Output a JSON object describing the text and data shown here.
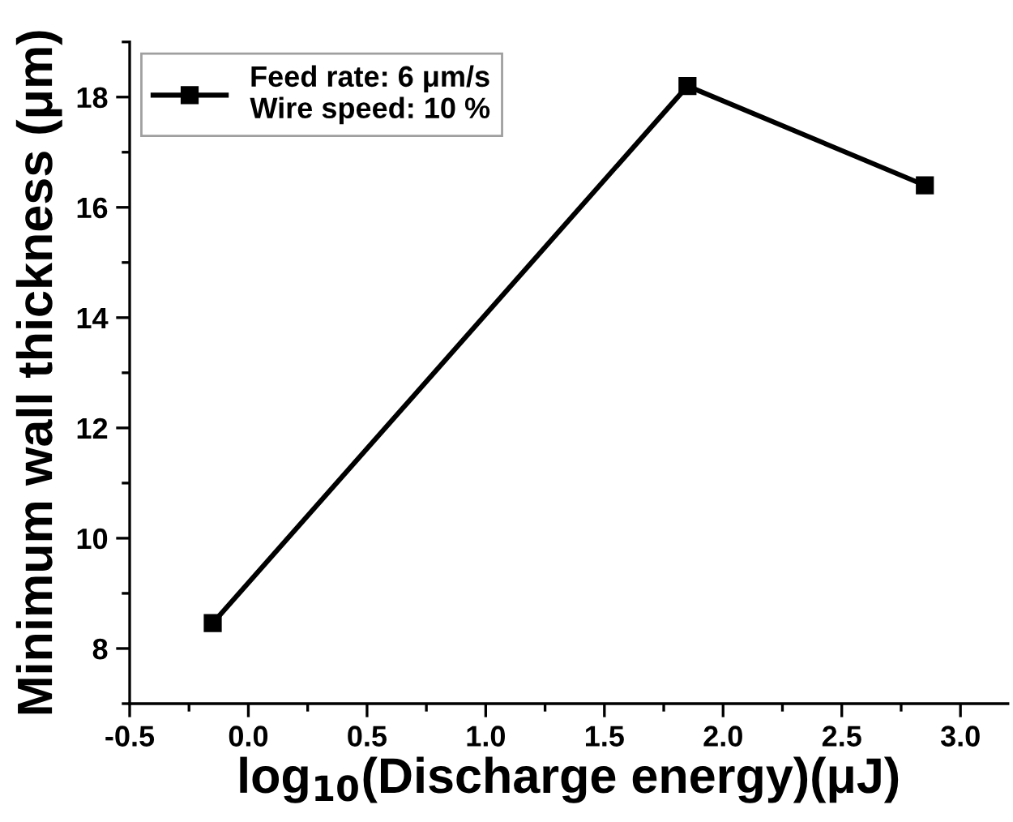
{
  "chart_data": {
    "type": "line",
    "xlabel": "log$_{10}$(Discharge energy)(μJ)",
    "ylabel": "Minimum wall thickness (μm)",
    "x": [
      -0.15,
      1.85,
      2.85
    ],
    "series": [
      {
        "name": "Feed rate: 6 μm/s\nWire speed: 10 %",
        "color": "#000000",
        "values": [
          8.46,
          18.2,
          16.4
        ]
      }
    ],
    "xlim": [
      -0.5,
      3.2
    ],
    "xticks": [
      {
        "value": -0.5,
        "label": "-0.5"
      },
      {
        "value": 0,
        "label": "0.0"
      },
      0.5,
      {
        "value": 1,
        "label": "1.0"
      },
      1.5,
      {
        "value": 2,
        "label": "2.0"
      },
      2.5,
      {
        "value": 3,
        "label": "3.0"
      }
    ],
    "ylim": [
      7,
      19
    ],
    "yticks": [
      8,
      10,
      12,
      14,
      16,
      18
    ],
    "marker": "square",
    "line_style": "solid",
    "legend": "top left",
    "grid": false
  }
}
